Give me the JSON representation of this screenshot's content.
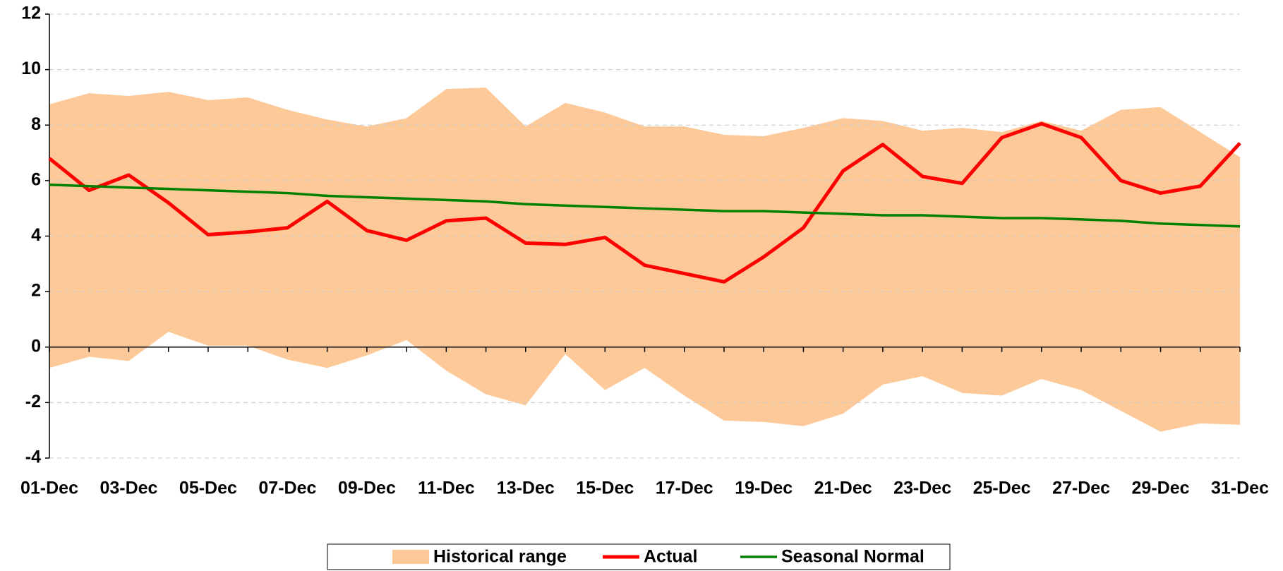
{
  "chart_data": {
    "type": "line",
    "categories": [
      "01-Dec",
      null,
      "03-Dec",
      null,
      "05-Dec",
      null,
      "07-Dec",
      null,
      "09-Dec",
      null,
      "11-Dec",
      null,
      "13-Dec",
      null,
      "15-Dec",
      null,
      "17-Dec",
      null,
      "19-Dec",
      null,
      "21-Dec",
      null,
      "23-Dec",
      null,
      "25-Dec",
      null,
      "27-Dec",
      null,
      "29-Dec",
      null,
      "31-Dec"
    ],
    "series": [
      {
        "name": "Historical range",
        "color": "#fdc998",
        "type": "range",
        "high": [
          8.75,
          9.15,
          9.05,
          9.2,
          8.9,
          9.0,
          8.55,
          8.2,
          7.95,
          8.25,
          9.3,
          9.35,
          7.95,
          8.8,
          8.45,
          7.95,
          7.95,
          7.65,
          7.6,
          7.9,
          8.25,
          8.15,
          7.8,
          7.9,
          7.75,
          8.15,
          7.8,
          8.55,
          8.65,
          7.75,
          6.85
        ],
        "low": [
          -0.75,
          -0.35,
          -0.5,
          0.55,
          0.05,
          0.05,
          -0.45,
          -0.75,
          -0.3,
          0.25,
          -0.85,
          -1.7,
          -2.1,
          -0.25,
          -1.55,
          -0.75,
          -1.75,
          -2.65,
          -2.7,
          -2.85,
          -2.4,
          -1.35,
          -1.05,
          -1.65,
          -1.75,
          -1.15,
          -1.55,
          -2.3,
          -3.05,
          -2.75,
          -2.8
        ]
      },
      {
        "name": "Actual",
        "color": "#ff0000",
        "values": [
          6.8,
          5.65,
          6.2,
          5.2,
          4.05,
          4.15,
          4.3,
          5.25,
          4.2,
          3.85,
          4.55,
          4.65,
          3.75,
          3.7,
          3.95,
          2.95,
          2.65,
          2.35,
          3.25,
          4.3,
          6.35,
          7.3,
          6.15,
          5.9,
          7.55,
          8.05,
          7.55,
          6.0,
          5.55,
          5.8,
          7.35
        ]
      },
      {
        "name": "Seasonal Normal",
        "color": "#008000",
        "values": [
          5.85,
          5.8,
          5.75,
          5.7,
          5.65,
          5.6,
          5.55,
          5.45,
          5.4,
          5.35,
          5.3,
          5.25,
          5.15,
          5.1,
          5.05,
          5.0,
          4.95,
          4.9,
          4.9,
          4.85,
          4.8,
          4.75,
          4.75,
          4.7,
          4.65,
          4.65,
          4.6,
          4.55,
          4.45,
          4.4,
          4.35
        ]
      }
    ],
    "ylim": [
      -4,
      12
    ],
    "yticks": [
      -4,
      -2,
      0,
      2,
      4,
      6,
      8,
      10,
      12
    ],
    "grid": true,
    "legend": "bottom"
  }
}
